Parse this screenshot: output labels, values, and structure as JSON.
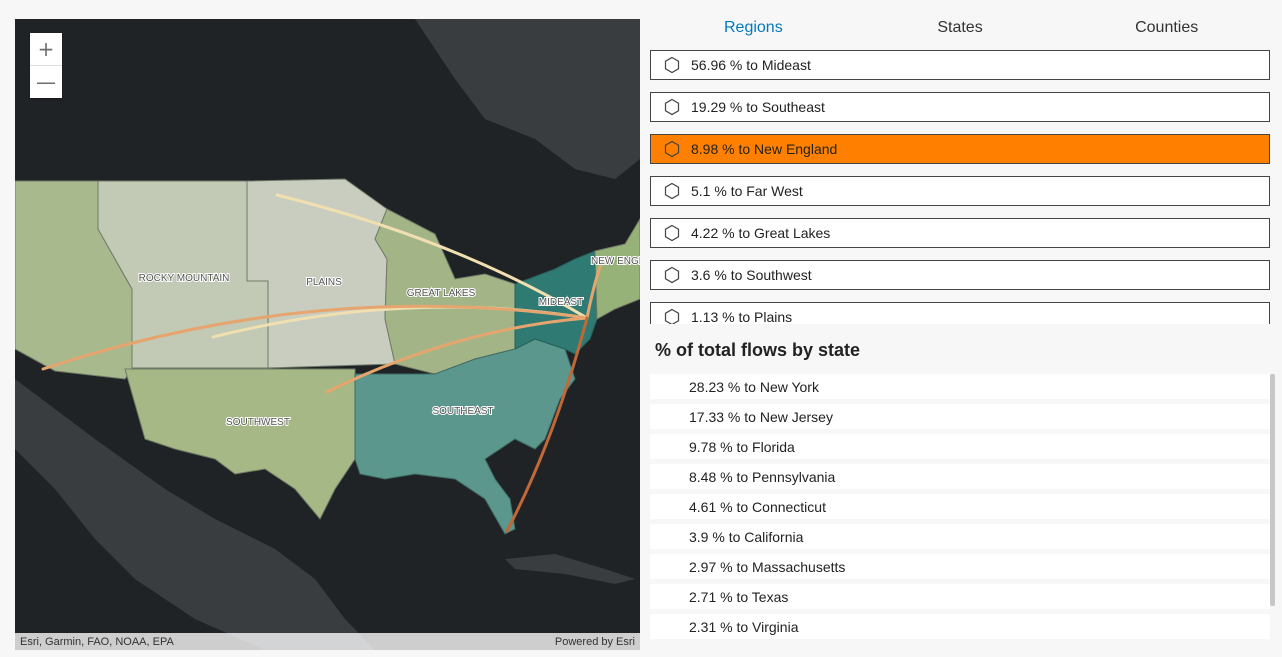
{
  "map": {
    "zoom_in": "+",
    "zoom_out": "—",
    "attribution_left": "Esri, Garmin, FAO, NOAA, EPA",
    "attribution_right": "Powered by Esri",
    "region_labels": {
      "rocky": "ROCKY MOUNTAIN",
      "plains": "PLAINS",
      "greatlakes": "GREAT LAKES",
      "mideast": "MIDEAST",
      "newengland": "NEW ENGL",
      "southwest": "SOUTHWEST",
      "southeast": "SOUTHEAST"
    },
    "colors": {
      "land": "#3a3d40",
      "water": "#202326",
      "far_west": "#a9b98e",
      "rocky_mountain": "#c2c9b4",
      "plains": "#c9cdbf",
      "great_lakes": "#a3b587",
      "southwest": "#a5b885",
      "southeast": "#5b978d",
      "mideast": "#2f7a72",
      "new_england": "#96b279",
      "flow_light": "#f0dfb0",
      "flow_mid": "#e6a56e",
      "flow_dark": "#c06838"
    }
  },
  "tabs": [
    "Regions",
    "States",
    "Counties"
  ],
  "regions": [
    {
      "label": "56.96 % to Mideast",
      "selected": false
    },
    {
      "label": "19.29 % to Southeast",
      "selected": false
    },
    {
      "label": "8.98 % to New England",
      "selected": true
    },
    {
      "label": "5.1 % to Far West",
      "selected": false
    },
    {
      "label": "4.22 % to Great Lakes",
      "selected": false
    },
    {
      "label": "3.6 % to Southwest",
      "selected": false
    },
    {
      "label": "1.13 % to Plains",
      "selected": false
    }
  ],
  "states_title": "% of total flows by state",
  "states": [
    "28.23 % to New York",
    "17.33 % to New Jersey",
    "9.78 % to Florida",
    "8.48 % to Pennsylvania",
    "4.61 % to Connecticut",
    "3.9 % to California",
    "2.97 % to Massachusetts",
    "2.71 % to Texas",
    "2.31 % to Virginia"
  ],
  "colors": {
    "accent": "#0079c1",
    "selected": "#ff8000"
  }
}
